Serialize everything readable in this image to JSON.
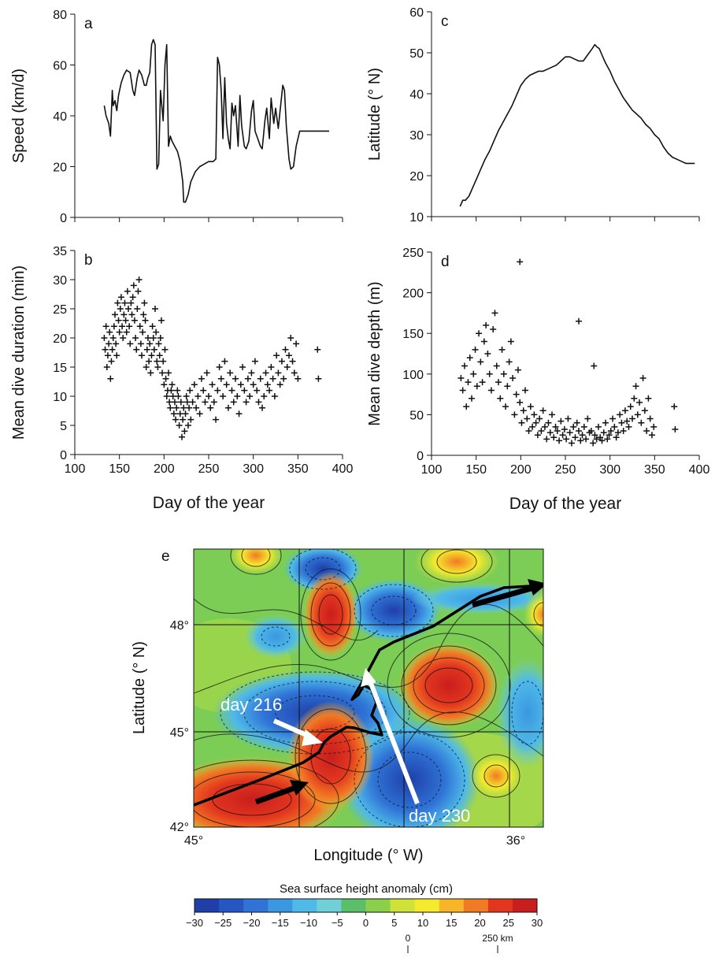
{
  "chart_data": [
    {
      "panel": "a",
      "type": "line",
      "panel_label": "a",
      "ylabel": "Speed (km/d)",
      "xlabel": "",
      "xlim": [
        100,
        400
      ],
      "ylim": [
        0,
        80
      ],
      "yticks": [
        0,
        20,
        40,
        60,
        80
      ],
      "xticks": [
        100,
        150,
        200,
        250,
        300,
        350,
        400
      ],
      "xtick_labels_shown": false,
      "x": [
        133,
        135,
        138,
        140,
        142,
        143,
        145,
        147,
        149,
        152,
        155,
        158,
        162,
        165,
        167,
        170,
        172,
        175,
        178,
        180,
        182,
        184,
        186,
        188,
        190,
        192,
        194,
        196,
        199,
        201,
        203,
        205,
        207,
        209,
        212,
        215,
        218,
        221,
        222,
        224,
        227,
        230,
        235,
        240,
        245,
        250,
        255,
        258,
        260,
        262,
        264,
        266,
        268,
        270,
        272,
        274,
        276,
        278,
        280,
        283,
        285,
        287,
        290,
        292,
        295,
        298,
        300,
        302,
        305,
        308,
        310,
        313,
        315,
        318,
        320,
        323,
        325,
        328,
        330,
        333,
        335,
        337,
        340,
        342,
        345,
        348,
        352,
        355,
        360,
        365,
        370,
        375,
        380,
        385
      ],
      "values": [
        44,
        40,
        37,
        32,
        50,
        44,
        46,
        42,
        48,
        53,
        56,
        58,
        57,
        50,
        48,
        55,
        58,
        56,
        52,
        52,
        55,
        57,
        68,
        70,
        68,
        19,
        21,
        50,
        38,
        60,
        68,
        28,
        32,
        30,
        28,
        26,
        22,
        14,
        6,
        6,
        9,
        14,
        18,
        20,
        21,
        22,
        22,
        23,
        63,
        60,
        50,
        31,
        55,
        37,
        31,
        27,
        45,
        40,
        44,
        28,
        48,
        36,
        28,
        27,
        30,
        42,
        46,
        34,
        31,
        28,
        27,
        38,
        43,
        31,
        47,
        37,
        43,
        35,
        42,
        52,
        50,
        36,
        23,
        19,
        20,
        28,
        34,
        34,
        34,
        34,
        34,
        34,
        34,
        34
      ]
    },
    {
      "panel": "b",
      "type": "scatter",
      "panel_label": "b",
      "ylabel": "Mean dive duration (min)",
      "xlabel": "Day of the year",
      "xlim": [
        100,
        400
      ],
      "ylim": [
        0,
        35
      ],
      "yticks": [
        0,
        5,
        10,
        15,
        20,
        25,
        30,
        35
      ],
      "xticks": [
        100,
        150,
        200,
        250,
        300,
        350,
        400
      ],
      "x": [
        133,
        134,
        135,
        136,
        137,
        138,
        139,
        140,
        141,
        142,
        143,
        144,
        145,
        146,
        147,
        148,
        149,
        150,
        151,
        152,
        153,
        154,
        155,
        156,
        157,
        158,
        159,
        160,
        161,
        162,
        163,
        164,
        165,
        166,
        167,
        168,
        169,
        170,
        171,
        172,
        173,
        174,
        175,
        176,
        177,
        178,
        179,
        180,
        181,
        182,
        183,
        184,
        185,
        186,
        187,
        188,
        189,
        190,
        191,
        192,
        193,
        194,
        195,
        196,
        197,
        198,
        199,
        200,
        201,
        202,
        203,
        204,
        205,
        206,
        207,
        208,
        209,
        210,
        211,
        212,
        213,
        214,
        215,
        216,
        217,
        218,
        219,
        220,
        221,
        222,
        223,
        224,
        225,
        226,
        227,
        228,
        229,
        230,
        232,
        234,
        236,
        238,
        240,
        242,
        244,
        246,
        248,
        250,
        252,
        254,
        256,
        258,
        260,
        262,
        264,
        266,
        268,
        270,
        272,
        274,
        276,
        278,
        280,
        282,
        284,
        286,
        288,
        290,
        292,
        294,
        296,
        298,
        300,
        302,
        304,
        306,
        308,
        310,
        312,
        314,
        316,
        318,
        320,
        322,
        324,
        326,
        328,
        330,
        332,
        334,
        336,
        338,
        340,
        342,
        344,
        346,
        348,
        350,
        372,
        373
      ],
      "values": [
        20,
        18,
        22,
        15,
        17,
        19,
        21,
        13,
        16,
        18,
        20,
        22,
        24,
        19,
        17,
        26,
        23,
        21,
        25,
        27,
        22,
        20,
        24,
        26,
        23,
        21,
        28,
        25,
        22,
        19,
        26,
        24,
        27,
        29,
        23,
        20,
        18,
        25,
        28,
        30,
        22,
        19,
        17,
        21,
        24,
        26,
        23,
        15,
        18,
        20,
        16,
        19,
        14,
        17,
        22,
        20,
        18,
        25,
        21,
        16,
        15,
        19,
        17,
        20,
        23,
        14,
        16,
        12,
        18,
        13,
        10,
        11,
        14,
        9,
        8,
        11,
        12,
        10,
        7,
        9,
        6,
        8,
        11,
        10,
        5,
        7,
        9,
        3,
        6,
        8,
        4,
        7,
        10,
        9,
        5,
        8,
        11,
        6,
        9,
        12,
        8,
        10,
        7,
        13,
        11,
        9,
        14,
        10,
        8,
        12,
        9,
        6,
        11,
        15,
        13,
        10,
        16,
        12,
        8,
        14,
        11,
        9,
        13,
        10,
        7,
        12,
        15,
        11,
        9,
        13,
        10,
        14,
        12,
        16,
        11,
        9,
        13,
        8,
        10,
        14,
        12,
        11,
        15,
        13,
        10,
        17,
        14,
        12,
        16,
        13,
        18,
        15,
        17,
        20,
        16,
        14,
        19,
        13,
        18,
        13
      ],
      "marker": "+"
    },
    {
      "panel": "c",
      "type": "line",
      "panel_label": "c",
      "ylabel": "Latitude (° N)",
      "xlabel": "",
      "xlim": [
        100,
        400
      ],
      "ylim": [
        10,
        60
      ],
      "yticks": [
        10,
        20,
        30,
        40,
        50,
        60
      ],
      "xticks": [
        100,
        150,
        200,
        250,
        300,
        350,
        400
      ],
      "xtick_labels_shown": false,
      "x": [
        132,
        135,
        138,
        142,
        146,
        150,
        155,
        160,
        165,
        170,
        175,
        180,
        185,
        190,
        195,
        200,
        205,
        210,
        215,
        220,
        225,
        230,
        235,
        240,
        245,
        250,
        255,
        260,
        265,
        270,
        275,
        280,
        283,
        285,
        288,
        290,
        293,
        295,
        300,
        305,
        310,
        315,
        320,
        325,
        330,
        335,
        340,
        345,
        350,
        355,
        360,
        365,
        370,
        375,
        380,
        385,
        390,
        395
      ],
      "values": [
        12.5,
        14,
        14,
        15,
        17,
        19,
        21.5,
        24,
        26,
        28.5,
        31,
        33,
        35,
        37,
        39.5,
        42,
        43.5,
        44.5,
        45,
        45.5,
        45.5,
        46,
        46.5,
        47,
        48,
        49,
        49,
        48.5,
        48,
        48,
        49.5,
        51,
        52,
        51.5,
        51,
        50,
        48.5,
        47.5,
        45.5,
        43,
        41,
        39,
        37.5,
        36,
        35,
        34,
        32.5,
        31.5,
        30,
        29,
        27,
        25.5,
        24.5,
        24,
        23.5,
        23,
        23,
        23
      ]
    },
    {
      "panel": "d",
      "type": "scatter",
      "panel_label": "d",
      "ylabel": "Mean dive depth (m)",
      "xlabel": "Day of the year",
      "xlim": [
        100,
        400
      ],
      "ylim": [
        0,
        250
      ],
      "yticks": [
        0,
        50,
        100,
        150,
        200,
        250
      ],
      "xticks": [
        100,
        150,
        200,
        250,
        300,
        350,
        400
      ],
      "x": [
        133,
        135,
        137,
        139,
        141,
        143,
        145,
        147,
        149,
        151,
        153,
        155,
        157,
        159,
        161,
        163,
        165,
        167,
        169,
        171,
        173,
        175,
        177,
        179,
        181,
        183,
        185,
        187,
        189,
        191,
        193,
        195,
        197,
        199,
        201,
        203,
        205,
        207,
        209,
        211,
        213,
        215,
        217,
        219,
        221,
        223,
        225,
        227,
        229,
        231,
        233,
        235,
        237,
        239,
        241,
        243,
        245,
        247,
        249,
        251,
        253,
        255,
        257,
        259,
        261,
        263,
        265,
        267,
        269,
        271,
        273,
        275,
        277,
        279,
        281,
        283,
        285,
        287,
        289,
        291,
        293,
        295,
        297,
        299,
        301,
        303,
        305,
        307,
        309,
        311,
        313,
        315,
        317,
        319,
        321,
        323,
        325,
        327,
        329,
        331,
        333,
        335,
        337,
        339,
        341,
        343,
        345,
        347,
        349,
        372,
        373,
        199,
        265,
        282
      ],
      "values": [
        95,
        80,
        110,
        60,
        90,
        120,
        70,
        100,
        130,
        85,
        150,
        115,
        90,
        140,
        160,
        125,
        100,
        80,
        155,
        175,
        110,
        90,
        70,
        130,
        100,
        60,
        85,
        115,
        140,
        95,
        50,
        75,
        105,
        65,
        40,
        55,
        80,
        45,
        30,
        60,
        35,
        50,
        40,
        25,
        45,
        30,
        55,
        35,
        20,
        40,
        28,
        50,
        22,
        35,
        30,
        18,
        42,
        25,
        32,
        20,
        45,
        28,
        15,
        35,
        22,
        40,
        30,
        18,
        25,
        35,
        20,
        45,
        28,
        30,
        15,
        25,
        20,
        35,
        22,
        18,
        28,
        40,
        20,
        25,
        30,
        45,
        35,
        22,
        28,
        50,
        40,
        30,
        55,
        42,
        35,
        60,
        45,
        70,
        85,
        50,
        65,
        40,
        95,
        55,
        30,
        70,
        45,
        25,
        35,
        60,
        32,
        238,
        165,
        110
      ]
    },
    {
      "panel": "e",
      "type": "heatmap",
      "panel_label": "e",
      "xlabel": "Longitude (° W)",
      "ylabel": "Latitude (° N)",
      "x_tick_labels": [
        "45°",
        "36°"
      ],
      "y_tick_labels": [
        "42°",
        "45°",
        "48°"
      ],
      "annotations": [
        "day 216",
        "day 230"
      ],
      "colorbar_title": "Sea surface height anomaly (cm)",
      "colorbar_ticks": [
        "−30",
        "−25",
        "−20",
        "−15",
        "−10",
        "−5",
        "0",
        "5",
        "10",
        "15",
        "20",
        "25",
        "30"
      ],
      "colors": [
        "#1f3fa8",
        "#2456c4",
        "#2f73d6",
        "#3a97e0",
        "#4fb9e8",
        "#6fd0d8",
        "#5bbf6a",
        "#8ccf4a",
        "#cfe23a",
        "#f6ea2e",
        "#f8b52a",
        "#f17a24",
        "#e2361f",
        "#c81e1e"
      ],
      "scale_bar_labels": [
        "0",
        "250 km"
      ]
    }
  ]
}
